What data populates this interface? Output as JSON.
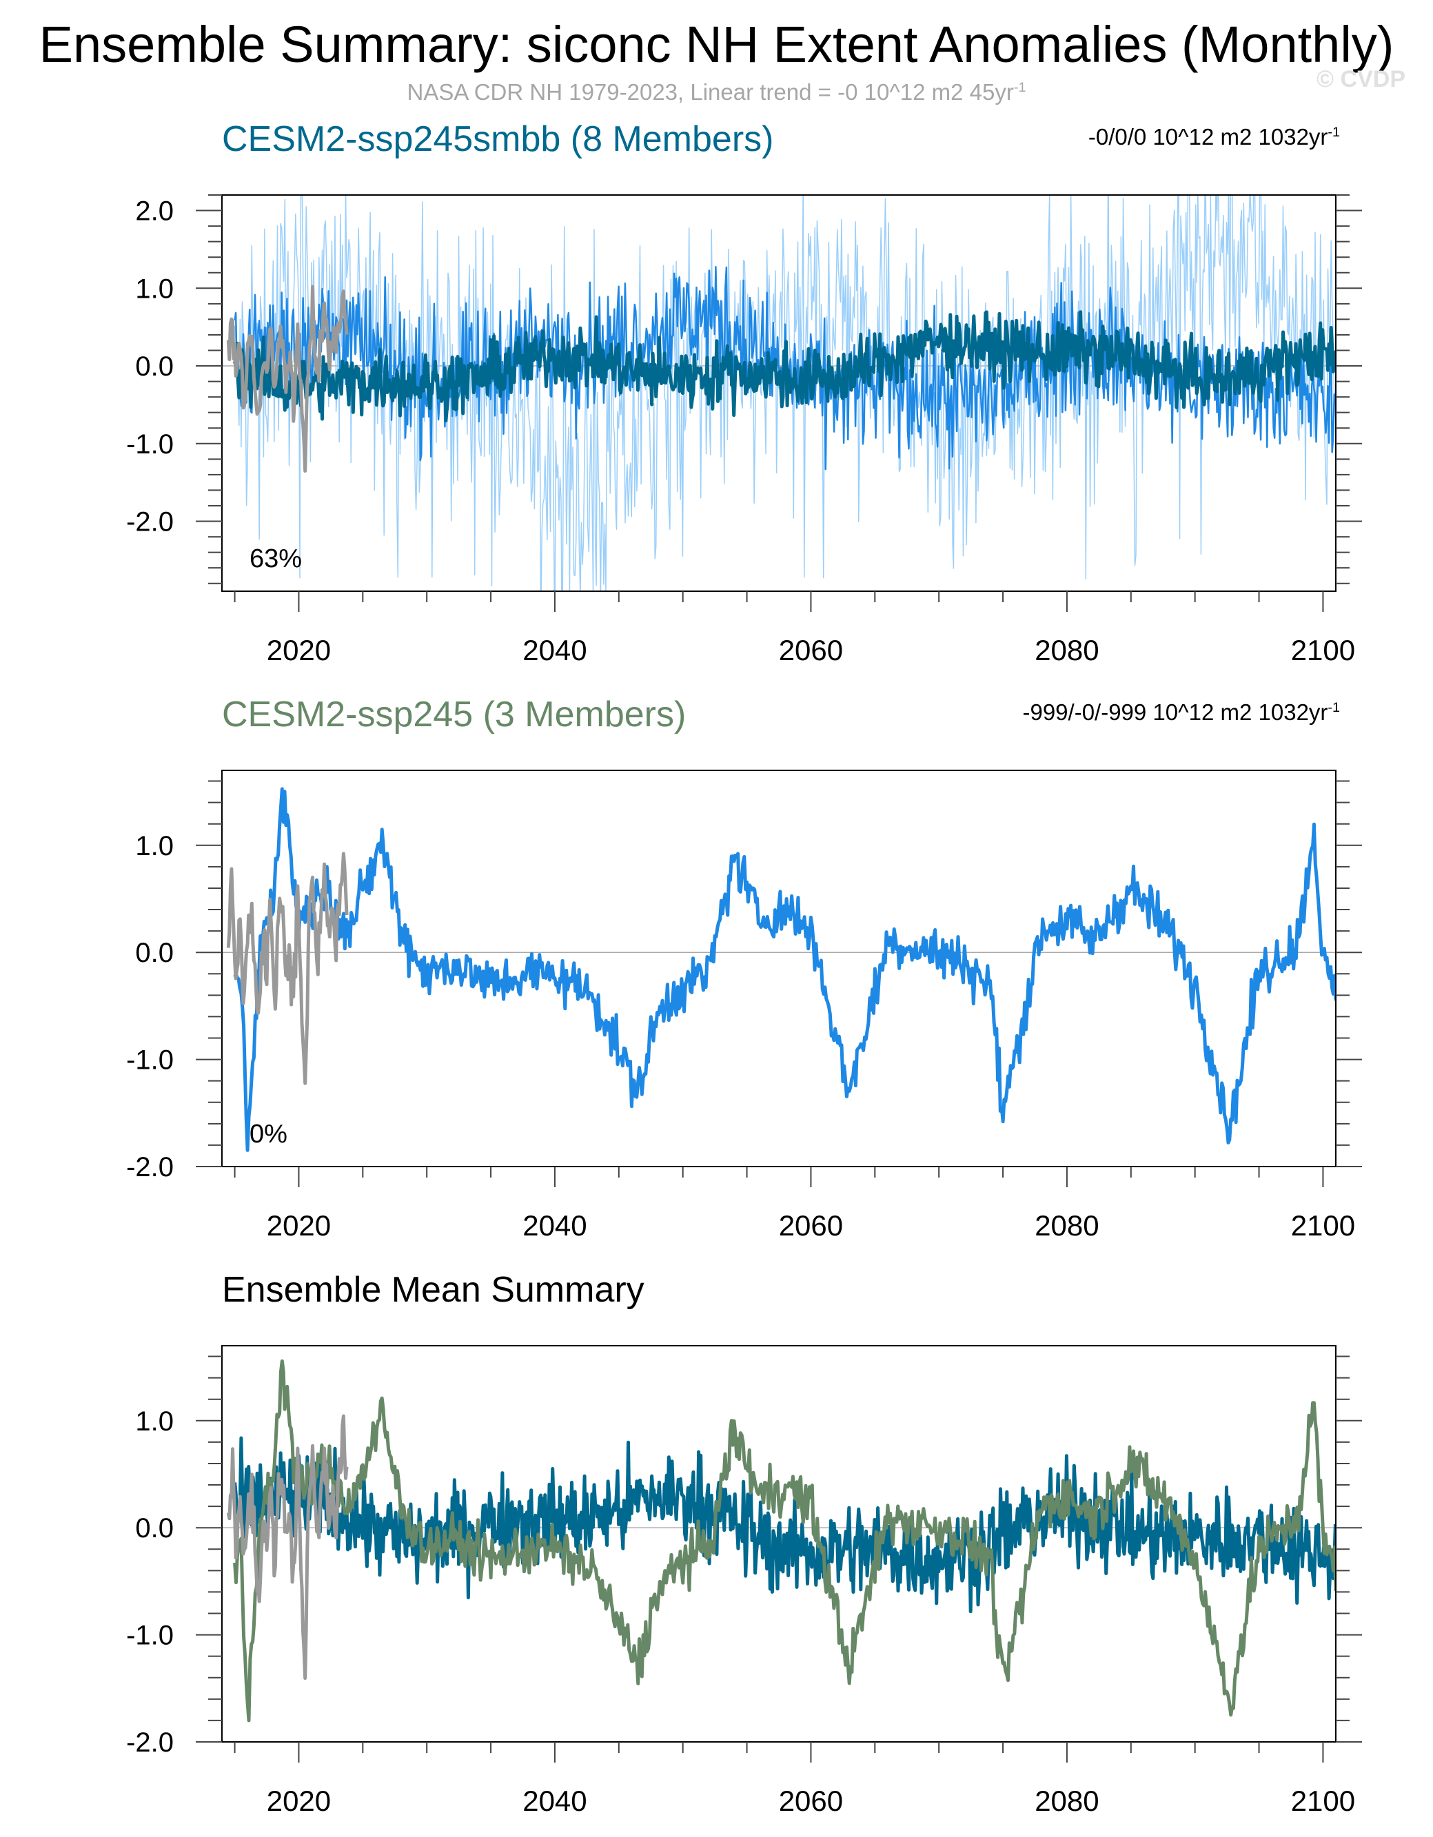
{
  "header": {
    "title": "Ensemble Summary: siconc NH Extent Anomalies (Monthly)",
    "subtitle": "NASA CDR NH 1979-2023, Linear trend = -0 10^12 m2 45yr",
    "subtitle_sup": "-1",
    "watermark": "© CVDP"
  },
  "colors": {
    "observation": "#999999",
    "ssp245smbb": "#1e88e5",
    "ssp245smbb_spread": "#90caf9",
    "ssp245smbb_mean": "#00698f",
    "ssp245": "#668866",
    "title_smbb": "#00698f",
    "title_ssp245": "#668866"
  },
  "chart_data": [
    {
      "type": "line",
      "id": "panel1",
      "title": "CESM2-ssp245smbb (8 Members)",
      "trend_text": "-0/0/0 10^12 m2 1032yr",
      "trend_sup": "-1",
      "annotation": "63%",
      "xlim": [
        2014,
        2101
      ],
      "ylim": [
        -2.9,
        2.2
      ],
      "xticks": [
        2020,
        2040,
        2060,
        2080,
        2100
      ],
      "xtick_labels": [
        "2020",
        "2040",
        "2060",
        "2080",
        "2100"
      ],
      "yticks": [
        2.0,
        1.0,
        0.0,
        -1.0,
        -2.0
      ],
      "ytick_labels": [
        "2.0",
        "1.0",
        "0.0",
        "-1.0",
        "-2.0"
      ],
      "series": [
        {
          "role": "ensemble-spread",
          "color": "#90caf9",
          "amplitude": 1.25,
          "min": -2.75,
          "max": 1.8
        },
        {
          "role": "members",
          "color": "#1e88e5",
          "amplitude": 0.55
        },
        {
          "role": "ensemble-mean",
          "color": "#00698f",
          "amplitude": 0.28
        },
        {
          "role": "observation",
          "color": "#999999",
          "x": [
            2014.5,
            2014.8,
            2015.1,
            2015.4,
            2015.7,
            2016.0,
            2016.3,
            2016.6,
            2016.9,
            2017.2,
            2017.5,
            2017.8,
            2018.1,
            2018.4,
            2018.7,
            2019.0,
            2019.3,
            2019.6,
            2019.9,
            2020.2,
            2020.5,
            2020.8,
            2021.1,
            2021.4,
            2021.7,
            2022.0,
            2022.3,
            2022.6,
            2022.9,
            2023.2,
            2023.5,
            2023.8
          ],
          "y": [
            0.1,
            0.65,
            -0.2,
            0.35,
            -0.5,
            0.15,
            0.4,
            -0.3,
            -0.7,
            0.2,
            -0.1,
            0.5,
            -0.4,
            0.3,
            0.55,
            -0.2,
            0.1,
            -0.5,
            0.6,
            -0.35,
            -1.4,
            0.3,
            0.7,
            -0.15,
            0.25,
            0.8,
            0.1,
            0.4,
            0.05,
            0.55,
            0.9,
            0.3
          ]
        }
      ]
    },
    {
      "type": "line",
      "id": "panel2",
      "title": "CESM2-ssp245 (3 Members)",
      "trend_text": "-999/-0/-999 10^12 m2 1032yr",
      "trend_sup": "-1",
      "annotation": "0%",
      "xlim": [
        2014,
        2101
      ],
      "ylim": [
        -2.0,
        1.7
      ],
      "xticks": [
        2020,
        2040,
        2060,
        2080,
        2100
      ],
      "xtick_labels": [
        "2020",
        "2040",
        "2060",
        "2080",
        "2100"
      ],
      "yticks": [
        1.0,
        0.0,
        -1.0,
        -2.0
      ],
      "ytick_labels": [
        "1.0",
        "0.0",
        "-1.0",
        "-2.0"
      ],
      "series": [
        {
          "role": "member-line",
          "color": "#1e88e5",
          "x": [
            2015,
            2015.5,
            2016,
            2017,
            2018,
            2018.7,
            2020,
            2022,
            2024,
            2026.5,
            2028,
            2030,
            2032,
            2035,
            2038,
            2040,
            2043,
            2046.5,
            2048,
            2050,
            2052,
            2054,
            2056,
            2058,
            2060,
            2061,
            2063,
            2066,
            2070,
            2072,
            2074,
            2075,
            2078,
            2080,
            2082,
            2085,
            2088,
            2090,
            2092.7,
            2095,
            2098,
            2099.3,
            2100,
            2101
          ],
          "y": [
            -0.4,
            -0.2,
            -1.85,
            0.1,
            0.5,
            1.55,
            0.3,
            0.6,
            0.2,
            1.05,
            0.2,
            -0.2,
            -0.1,
            -0.3,
            -0.2,
            -0.2,
            -0.4,
            -1.3,
            -0.6,
            -0.3,
            -0.2,
            0.9,
            0.3,
            0.4,
            0.2,
            -0.3,
            -1.3,
            0.1,
            0.0,
            -0.1,
            -0.3,
            -1.5,
            0.2,
            0.3,
            0.1,
            0.6,
            0.2,
            -0.3,
            -1.65,
            -0.2,
            0.1,
            1.15,
            -0.1,
            -0.4
          ]
        },
        {
          "role": "observation",
          "color": "#999999",
          "x": [
            2014.5,
            2014.8,
            2015.1,
            2015.4,
            2015.7,
            2016.0,
            2016.3,
            2016.6,
            2016.9,
            2017.2,
            2017.5,
            2017.8,
            2018.1,
            2018.4,
            2018.7,
            2019.0,
            2019.3,
            2019.6,
            2019.9,
            2020.2,
            2020.5,
            2020.8,
            2021.1,
            2021.4,
            2021.7,
            2022.0,
            2022.3,
            2022.6,
            2022.9,
            2023.2,
            2023.5,
            2023.8
          ],
          "y": [
            0.1,
            0.65,
            -0.2,
            0.35,
            -0.5,
            0.15,
            0.4,
            -0.3,
            -0.7,
            0.2,
            -0.1,
            0.5,
            -0.4,
            0.3,
            0.55,
            -0.2,
            0.1,
            -0.5,
            0.6,
            -0.35,
            -1.4,
            0.3,
            0.7,
            -0.15,
            0.25,
            0.8,
            0.1,
            0.4,
            0.05,
            0.55,
            0.9,
            0.3
          ]
        }
      ]
    },
    {
      "type": "line",
      "id": "panel3",
      "title": "Ensemble Mean Summary",
      "xlim": [
        2014,
        2101
      ],
      "ylim": [
        -2.0,
        1.7
      ],
      "xticks": [
        2020,
        2040,
        2060,
        2080,
        2100
      ],
      "xtick_labels": [
        "2020",
        "2040",
        "2060",
        "2080",
        "2100"
      ],
      "yticks": [
        1.0,
        0.0,
        -1.0,
        -2.0
      ],
      "ytick_labels": [
        "1.0",
        "0.0",
        "-1.0",
        "-2.0"
      ],
      "series": [
        {
          "role": "ssp245smbb-mean",
          "color": "#00698f",
          "amplitude": 0.3
        },
        {
          "role": "ssp245-mean",
          "color": "#668866",
          "x": [
            2015,
            2015.5,
            2016,
            2017,
            2018,
            2018.7,
            2020,
            2022,
            2024,
            2026.5,
            2028,
            2030,
            2032,
            2035,
            2038,
            2040,
            2043,
            2046.5,
            2048,
            2050,
            2052,
            2054,
            2056,
            2058,
            2060,
            2061,
            2063,
            2066,
            2070,
            2072,
            2074,
            2075,
            2078,
            2080,
            2082,
            2085,
            2088,
            2090,
            2092.7,
            2095,
            2098,
            2099.3,
            2100,
            2101
          ],
          "y": [
            -0.4,
            -0.2,
            -1.85,
            0.1,
            0.5,
            1.55,
            0.3,
            0.6,
            0.2,
            1.05,
            0.2,
            -0.2,
            -0.1,
            -0.3,
            -0.2,
            -0.2,
            -0.4,
            -1.3,
            -0.6,
            -0.3,
            -0.2,
            0.9,
            0.3,
            0.4,
            0.2,
            -0.3,
            -1.3,
            0.1,
            0.0,
            -0.1,
            -0.3,
            -1.5,
            0.2,
            0.3,
            0.1,
            0.6,
            0.2,
            -0.3,
            -1.65,
            -0.2,
            0.1,
            1.15,
            -0.1,
            -0.4
          ]
        },
        {
          "role": "observation",
          "color": "#999999",
          "x": [
            2014.5,
            2014.8,
            2015.1,
            2015.4,
            2015.7,
            2016.0,
            2016.3,
            2016.6,
            2016.9,
            2017.2,
            2017.5,
            2017.8,
            2018.1,
            2018.4,
            2018.7,
            2019.0,
            2019.3,
            2019.6,
            2019.9,
            2020.2,
            2020.5,
            2020.8,
            2021.1,
            2021.4,
            2021.7,
            2022.0,
            2022.3,
            2022.6,
            2022.9,
            2023.2,
            2023.5,
            2023.8
          ],
          "y": [
            0.1,
            0.65,
            -0.2,
            0.35,
            -0.5,
            0.15,
            0.4,
            -0.3,
            -0.7,
            0.2,
            -0.1,
            0.5,
            -0.4,
            0.3,
            0.55,
            -0.2,
            0.1,
            -0.5,
            0.6,
            -0.35,
            -1.4,
            0.3,
            0.7,
            -0.15,
            0.25,
            0.8,
            0.1,
            0.4,
            0.05,
            0.55,
            0.9,
            0.3
          ]
        }
      ]
    }
  ]
}
